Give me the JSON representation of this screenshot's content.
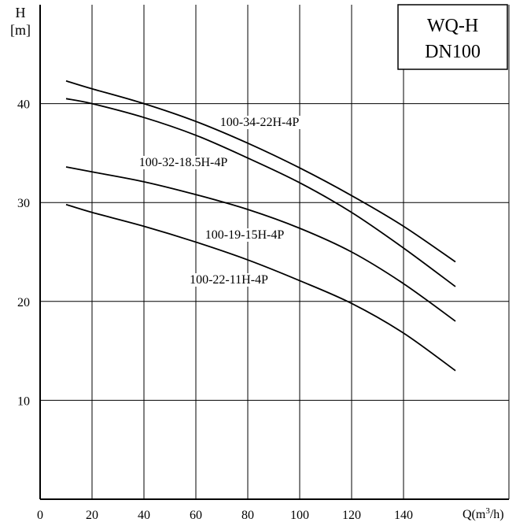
{
  "chart_data": {
    "type": "line",
    "title_lines": [
      "WQ-H",
      "DN100"
    ],
    "ylabel_lines": [
      "H",
      "[m]"
    ],
    "xlabel": "Q(m³/h)",
    "x_ticks": [
      {
        "value": 0,
        "label": "0"
      },
      {
        "value": 20,
        "label": "20"
      },
      {
        "value": 40,
        "label": "40"
      },
      {
        "value": 60,
        "label": "60"
      },
      {
        "value": 80,
        "label": "80"
      },
      {
        "value": 100,
        "label": "100"
      },
      {
        "value": 120,
        "label": "120"
      },
      {
        "value": 140,
        "label": "140"
      }
    ],
    "y_ticks": [
      {
        "value": 10,
        "label": "10"
      },
      {
        "value": 20,
        "label": "20"
      },
      {
        "value": 30,
        "label": "30"
      },
      {
        "value": 40,
        "label": "40"
      }
    ],
    "xlim": [
      0,
      180
    ],
    "ylim": [
      0,
      50
    ],
    "grid": true,
    "series": [
      {
        "name": "100-34-22H-4P",
        "x": [
          10,
          20,
          40,
          60,
          80,
          100,
          120,
          140,
          160
        ],
        "y": [
          42.3,
          41.5,
          40.0,
          38.2,
          36.0,
          33.5,
          30.7,
          27.6,
          24.0
        ]
      },
      {
        "name": "100-32-18.5H-4P",
        "x": [
          10,
          20,
          40,
          60,
          80,
          100,
          120,
          140,
          160
        ],
        "y": [
          40.5,
          40.0,
          38.6,
          36.8,
          34.5,
          32.0,
          29.0,
          25.4,
          21.5
        ]
      },
      {
        "name": "100-19-15H-4P",
        "x": [
          10,
          20,
          40,
          60,
          80,
          100,
          120,
          140,
          160
        ],
        "y": [
          33.6,
          33.1,
          32.1,
          30.8,
          29.3,
          27.4,
          25.0,
          21.8,
          18.0
        ]
      },
      {
        "name": "100-22-11H-4P",
        "x": [
          10,
          20,
          40,
          60,
          80,
          100,
          120,
          140,
          160
        ],
        "y": [
          29.8,
          29.0,
          27.6,
          26.0,
          24.2,
          22.1,
          19.8,
          16.8,
          13.0
        ]
      }
    ]
  }
}
